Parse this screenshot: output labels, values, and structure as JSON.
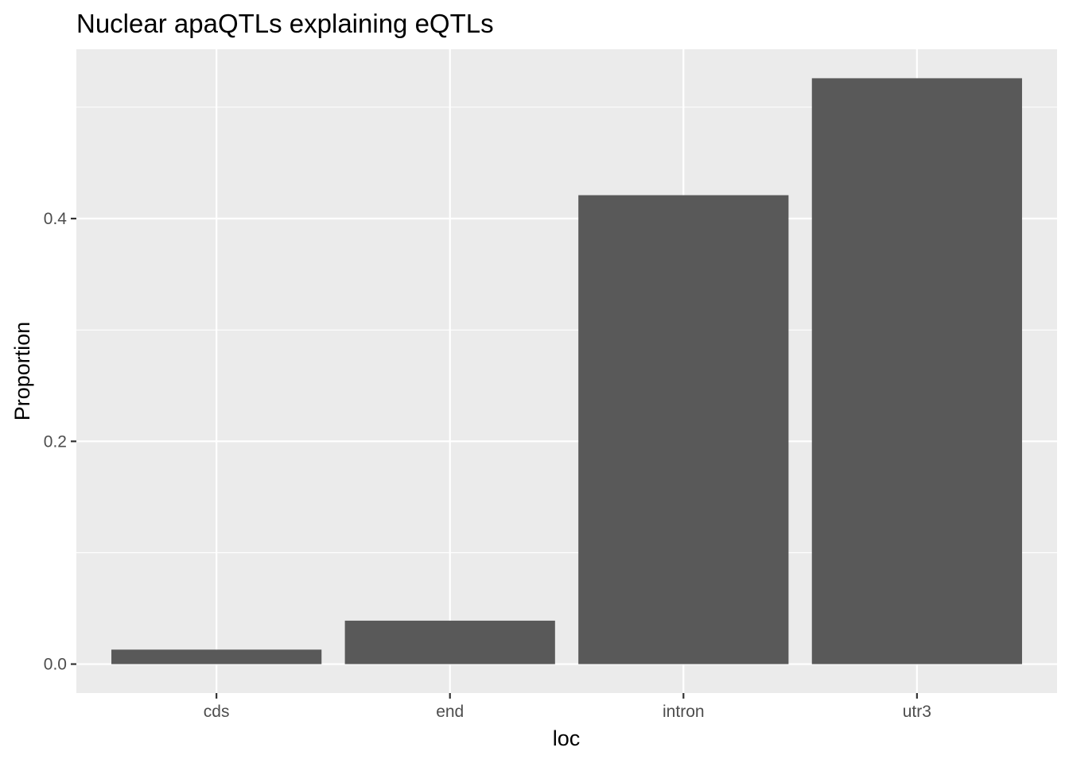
{
  "chart_data": {
    "type": "bar",
    "title": "Nuclear apaQTLs explaining eQTLs",
    "xlabel": "loc",
    "ylabel": "Proportion",
    "categories": [
      "cds",
      "end",
      "intron",
      "utr3"
    ],
    "values": [
      0.013,
      0.039,
      0.421,
      0.526
    ],
    "ylim": [
      -0.026,
      0.552
    ],
    "yticks": [
      0.0,
      0.2,
      0.4
    ],
    "ytick_labels": [
      "0.0",
      "0.2",
      "0.4"
    ],
    "grid": true,
    "legend": "none",
    "colors": {
      "bar": "#595959",
      "panel_background": "#ebebeb",
      "grid": "#ffffff",
      "tick_text": "#4d4d4d",
      "tick_mark": "#333333"
    }
  }
}
